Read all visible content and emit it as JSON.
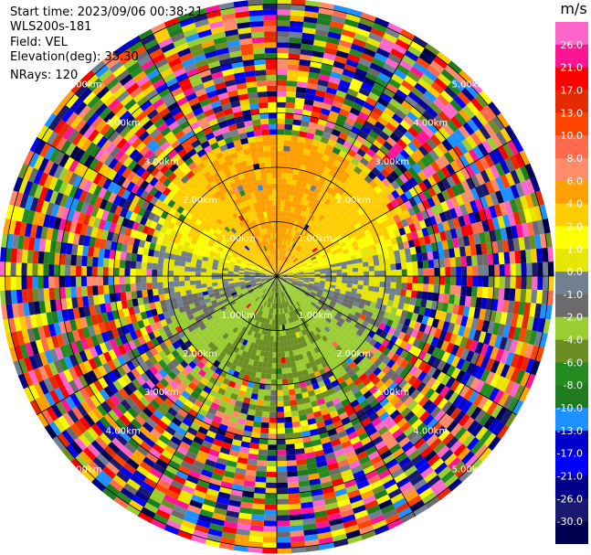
{
  "info": {
    "start_time": "Start time: 2023/09/06 00:38:21",
    "instrument": "WLS200s-181",
    "field": "Field: VEL",
    "elevation": "Elevation(deg): 35.30",
    "nrays": "NRays: 120"
  },
  "chart_data": {
    "type": "heatmap",
    "plot": "PPI",
    "title": "",
    "xlabel": "",
    "ylabel": "",
    "field": "VEL",
    "range_ring_labels": [
      "1.00km",
      "2.00km",
      "3.00km",
      "4.00km",
      "5.00km"
    ],
    "range_rings_km": [
      1,
      2,
      3,
      4,
      5
    ],
    "max_range_km": 5.1,
    "spoke_angles_deg": [
      0,
      30,
      60,
      90,
      120,
      150,
      180,
      210,
      240,
      270,
      300,
      330
    ],
    "nrays": 120,
    "colorbar": {
      "units": "m/s",
      "tick_labels": [
        "26.0",
        "21.0",
        "17.0",
        "13.0",
        "10.0",
        "8.0",
        "6.0",
        "4.0",
        "2.0",
        "1.0",
        "0.0",
        "-1.0",
        "-2.0",
        "-4.0",
        "-6.0",
        "-8.0",
        "-10.0",
        "-13.0",
        "-17.0",
        "-21.0",
        "-26.0",
        "-30.0"
      ],
      "colors": [
        "#ff66cc",
        "#ff1493",
        "#ff0000",
        "#e62a00",
        "#ff4400",
        "#ff6a4d",
        "#ff8c69",
        "#ff9f00",
        "#ffcc00",
        "#ffff00",
        "#e6e600",
        "#708090",
        "#6b6b6b",
        "#9acd32",
        "#6b8e23",
        "#228b22",
        "#1e7b1e",
        "#1e90ff",
        "#0000cd",
        "#0000ff",
        "#00008b",
        "#191970",
        "#000050"
      ]
    },
    "near_field_pattern": {
      "north_sector": "yellow/orange positive velocities 2.0 to 6.0 m/s",
      "east_west_band": "gray near 0.0 m/s",
      "south_sector": "green negative velocities -2.0 to -6.0 m/s",
      "outer_region": "noise (random colors across full scale)"
    }
  }
}
